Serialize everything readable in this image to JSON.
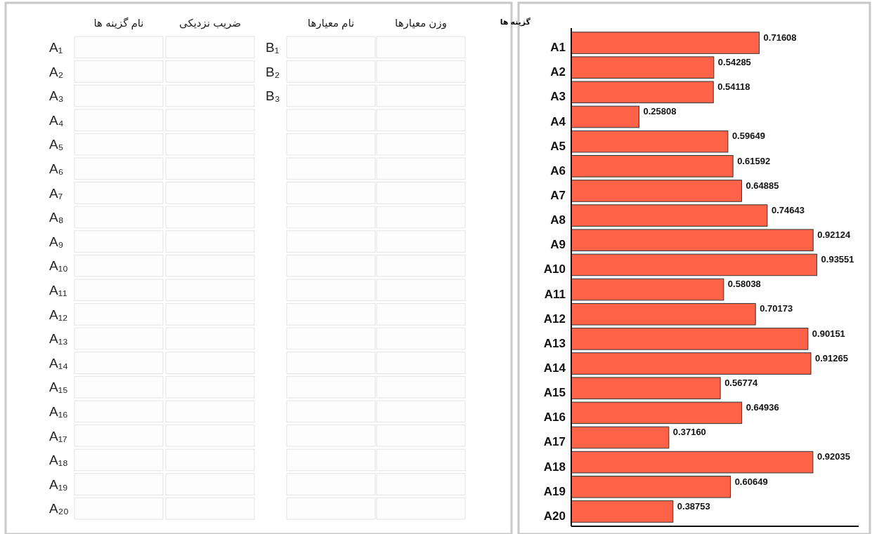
{
  "chart_data": [
    {
      "type": "other",
      "categories": [
        "نام گزینه ها",
        "ضریب نزدیکی",
        "نام معیارها",
        "وزن معیارها"
      ],
      "y_categories": [
        "A₁",
        "A₂",
        "A₃",
        "A₄",
        "A₅",
        "A₆",
        "A₇",
        "A₈",
        "A₉",
        "A₁₀",
        "A₁₁",
        "A₁₂",
        "A₁₃",
        "A₁₄",
        "A₁₅",
        "A₁₆",
        "A₁₇",
        "A₁₈",
        "A₁₉",
        "A₂₀"
      ],
      "y2_categories": [
        "B₁",
        "B₂",
        "B₃"
      ]
    },
    {
      "type": "bar",
      "orientation": "horizontal",
      "ylabel": "گزینه ها",
      "categories": [
        "A1",
        "A2",
        "A3",
        "A4",
        "A5",
        "A6",
        "A7",
        "A8",
        "A9",
        "A10",
        "A11",
        "A12",
        "A13",
        "A14",
        "A15",
        "A16",
        "A17",
        "A18",
        "A19",
        "A20"
      ],
      "values": [
        0.71608,
        0.54285,
        0.54118,
        0.25808,
        0.59649,
        0.61592,
        0.64885,
        0.74643,
        0.92124,
        0.93551,
        0.58038,
        0.70173,
        0.90151,
        0.91265,
        0.56774,
        0.64936,
        0.3716,
        0.92035,
        0.60649,
        0.38753
      ],
      "value_labels": [
        "0.71608",
        "0.54285",
        "0.54118",
        "0.25808",
        "0.59649",
        "0.61592",
        "0.64885",
        "0.74643",
        "0.92124",
        "0.93551",
        "0.58038",
        "0.70173",
        "0.90151",
        "0.91265",
        "0.56774",
        "0.64936",
        "0.37160",
        "0.92035",
        "0.60649",
        "0.38753"
      ],
      "color": "#ff6347"
    }
  ]
}
